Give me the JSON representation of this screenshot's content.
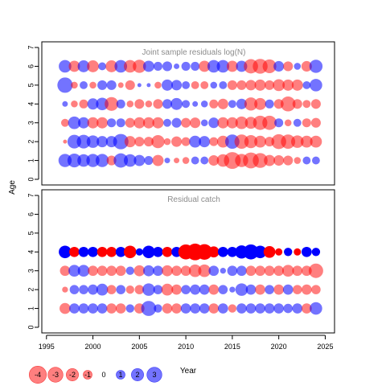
{
  "chart_data": [
    {
      "type": "scatter",
      "subtype": "bubble",
      "title": "Joint sample residuals log(N)",
      "ylabel": "Age",
      "xlim": [
        1994.5,
        2026.0
      ],
      "ylim": [
        -0.3,
        7.3
      ],
      "yticks": [
        0,
        1,
        2,
        3,
        4,
        5,
        6,
        7
      ],
      "ages": [
        1,
        2,
        3,
        4,
        5,
        6
      ],
      "years": [
        1997,
        1998,
        1999,
        2000,
        2001,
        2002,
        2003,
        2004,
        2005,
        2006,
        2007,
        2008,
        2009,
        2010,
        2011,
        2012,
        2013,
        2014,
        2015,
        2016,
        2017,
        2018,
        2019,
        2020,
        2021,
        2022,
        2023,
        2024
      ],
      "residuals": {
        "1": [
          1.1,
          1.2,
          1.0,
          1.1,
          1.1,
          -0.6,
          1.3,
          1.0,
          0.8,
          0.5,
          -0.8,
          0.2,
          -0.2,
          -0.3,
          0.4,
          0.4,
          -0.7,
          -1.0,
          -1.8,
          -1.1,
          -1.6,
          -1.4,
          -0.8,
          -0.7,
          -0.6,
          -0.3,
          0.4,
          0.4
        ],
        "2": [
          -0.1,
          1.2,
          1.2,
          1.0,
          0.8,
          0.8,
          1.5,
          -0.8,
          -0.6,
          -0.6,
          -1.1,
          -0.3,
          -0.7,
          -0.5,
          0.9,
          0.8,
          -0.5,
          -0.9,
          1.3,
          -1.3,
          -1.1,
          -0.9,
          -0.6,
          -1.4,
          -1.3,
          -1.0,
          -0.9,
          -0.9
        ],
        "3": [
          -0.4,
          1.0,
          0.8,
          -0.8,
          -0.8,
          0.5,
          0.5,
          -0.6,
          -0.8,
          -0.8,
          -0.8,
          0.4,
          0.6,
          -0.6,
          -0.7,
          0.3,
          0.7,
          -0.8,
          -0.8,
          -1.0,
          -0.9,
          -1.3,
          -1.3,
          0.5,
          -0.3,
          0.4,
          -0.5,
          -0.6
        ],
        "4": [
          0.2,
          -0.3,
          -0.5,
          0.8,
          1.0,
          -1.2,
          0.5,
          -0.3,
          -0.6,
          -0.3,
          -0.6,
          0.6,
          0.9,
          0.4,
          0.2,
          0.3,
          -0.5,
          -0.7,
          0.4,
          0.7,
          -1.1,
          -0.9,
          0.5,
          -0.6,
          -1.4,
          -0.6,
          -0.4,
          -0.6
        ],
        "5": [
          1.5,
          -0.3,
          0.4,
          -0.3,
          0.6,
          0.6,
          -0.2,
          -0.6,
          0.1,
          0.1,
          -0.3,
          0.8,
          0.7,
          0.4,
          -0.4,
          -0.4,
          0.3,
          0.4,
          -0.6,
          -0.6,
          -0.7,
          -0.8,
          -0.6,
          -0.9,
          -0.8,
          -0.8,
          0.4,
          1.0
        ],
        "6": [
          1.0,
          -0.8,
          0.9,
          -0.9,
          0.4,
          -0.9,
          1.0,
          -1.0,
          -1.1,
          0.8,
          0.5,
          0.6,
          0.2,
          0.5,
          0.5,
          -0.8,
          1.0,
          1.0,
          -0.8,
          0.8,
          -1.3,
          -1.4,
          -1.2,
          0.7,
          -0.6,
          0.3,
          -0.7,
          1.1
        ]
      }
    },
    {
      "type": "scatter",
      "subtype": "bubble",
      "title": "Residual catch",
      "xlabel": "Year",
      "xlim": [
        1994.5,
        2026.0
      ],
      "ylim": [
        -0.3,
        7.3
      ],
      "xticks": [
        1995,
        2000,
        2005,
        2010,
        2015,
        2020,
        2025
      ],
      "yticks": [
        0,
        1,
        2,
        3,
        4,
        5,
        6,
        7
      ],
      "ages": [
        1,
        2,
        3,
        4
      ],
      "years": [
        1997,
        1998,
        1999,
        2000,
        2001,
        2002,
        2003,
        2004,
        2005,
        2006,
        2007,
        2008,
        2009,
        2010,
        2011,
        2012,
        2013,
        2014,
        2015,
        2016,
        2017,
        2018,
        2019,
        2020,
        2021,
        2022,
        2023,
        2024
      ],
      "residuals": {
        "1": [
          -0.7,
          0.6,
          0.6,
          0.6,
          0.6,
          -0.6,
          -0.6,
          0.4,
          -0.6,
          1.3,
          0.4,
          -0.6,
          -0.6,
          0.6,
          0.6,
          0.6,
          -0.6,
          0.6,
          -0.4,
          0.6,
          0.6,
          0.6,
          0.6,
          0.6,
          0.5,
          0.6,
          -0.6,
          0.9
        ],
        "2": [
          -0.2,
          0.5,
          0.5,
          0.6,
          0.8,
          -0.5,
          0.5,
          -0.4,
          -0.5,
          0.9,
          0.5,
          -0.8,
          -0.6,
          0.5,
          0.6,
          0.6,
          -0.6,
          0.5,
          0.2,
          0.9,
          0.6,
          -0.6,
          0.5,
          -0.6,
          0.6,
          -0.5,
          -0.6,
          -0.5
        ],
        "3": [
          -0.6,
          0.8,
          0.8,
          -0.6,
          -0.6,
          -0.6,
          -0.6,
          0.4,
          -0.7,
          0.7,
          0.6,
          -0.7,
          -0.6,
          -0.6,
          -0.9,
          -0.9,
          0.6,
          0.2,
          0.6,
          0.6,
          -0.6,
          -0.6,
          -0.6,
          -0.6,
          -0.8,
          -0.6,
          -0.6,
          -1.2
        ],
        "4": [
          0.9,
          -0.6,
          0.6,
          0.6,
          -0.6,
          -0.6,
          0.6,
          -0.9,
          0.3,
          0.9,
          0.6,
          -0.6,
          0.6,
          -1.3,
          -1.6,
          -1.4,
          -0.7,
          0.6,
          0.6,
          1.0,
          1.3,
          0.9,
          -0.8,
          -0.3,
          0.4,
          -0.3,
          0.6,
          0.4
        ]
      }
    }
  ],
  "legend": {
    "values": [
      -4,
      -3,
      -2,
      -1,
      0,
      1,
      2,
      3
    ],
    "labels": [
      "-4",
      "-3",
      "-2",
      "-1",
      "0",
      "1",
      "2",
      "3"
    ],
    "placement": "bottom-left"
  },
  "colors": {
    "positive": "#3b3bf5",
    "negative": "#f53b3b",
    "positive_fill": "rgba(0,0,255,0.55)",
    "negative_fill": "rgba(255,0,0,0.5)",
    "catch_positive": "#0000ff",
    "catch_negative": "#ff0000",
    "panel_title": "#8c8c8c",
    "axis": "#000000"
  }
}
